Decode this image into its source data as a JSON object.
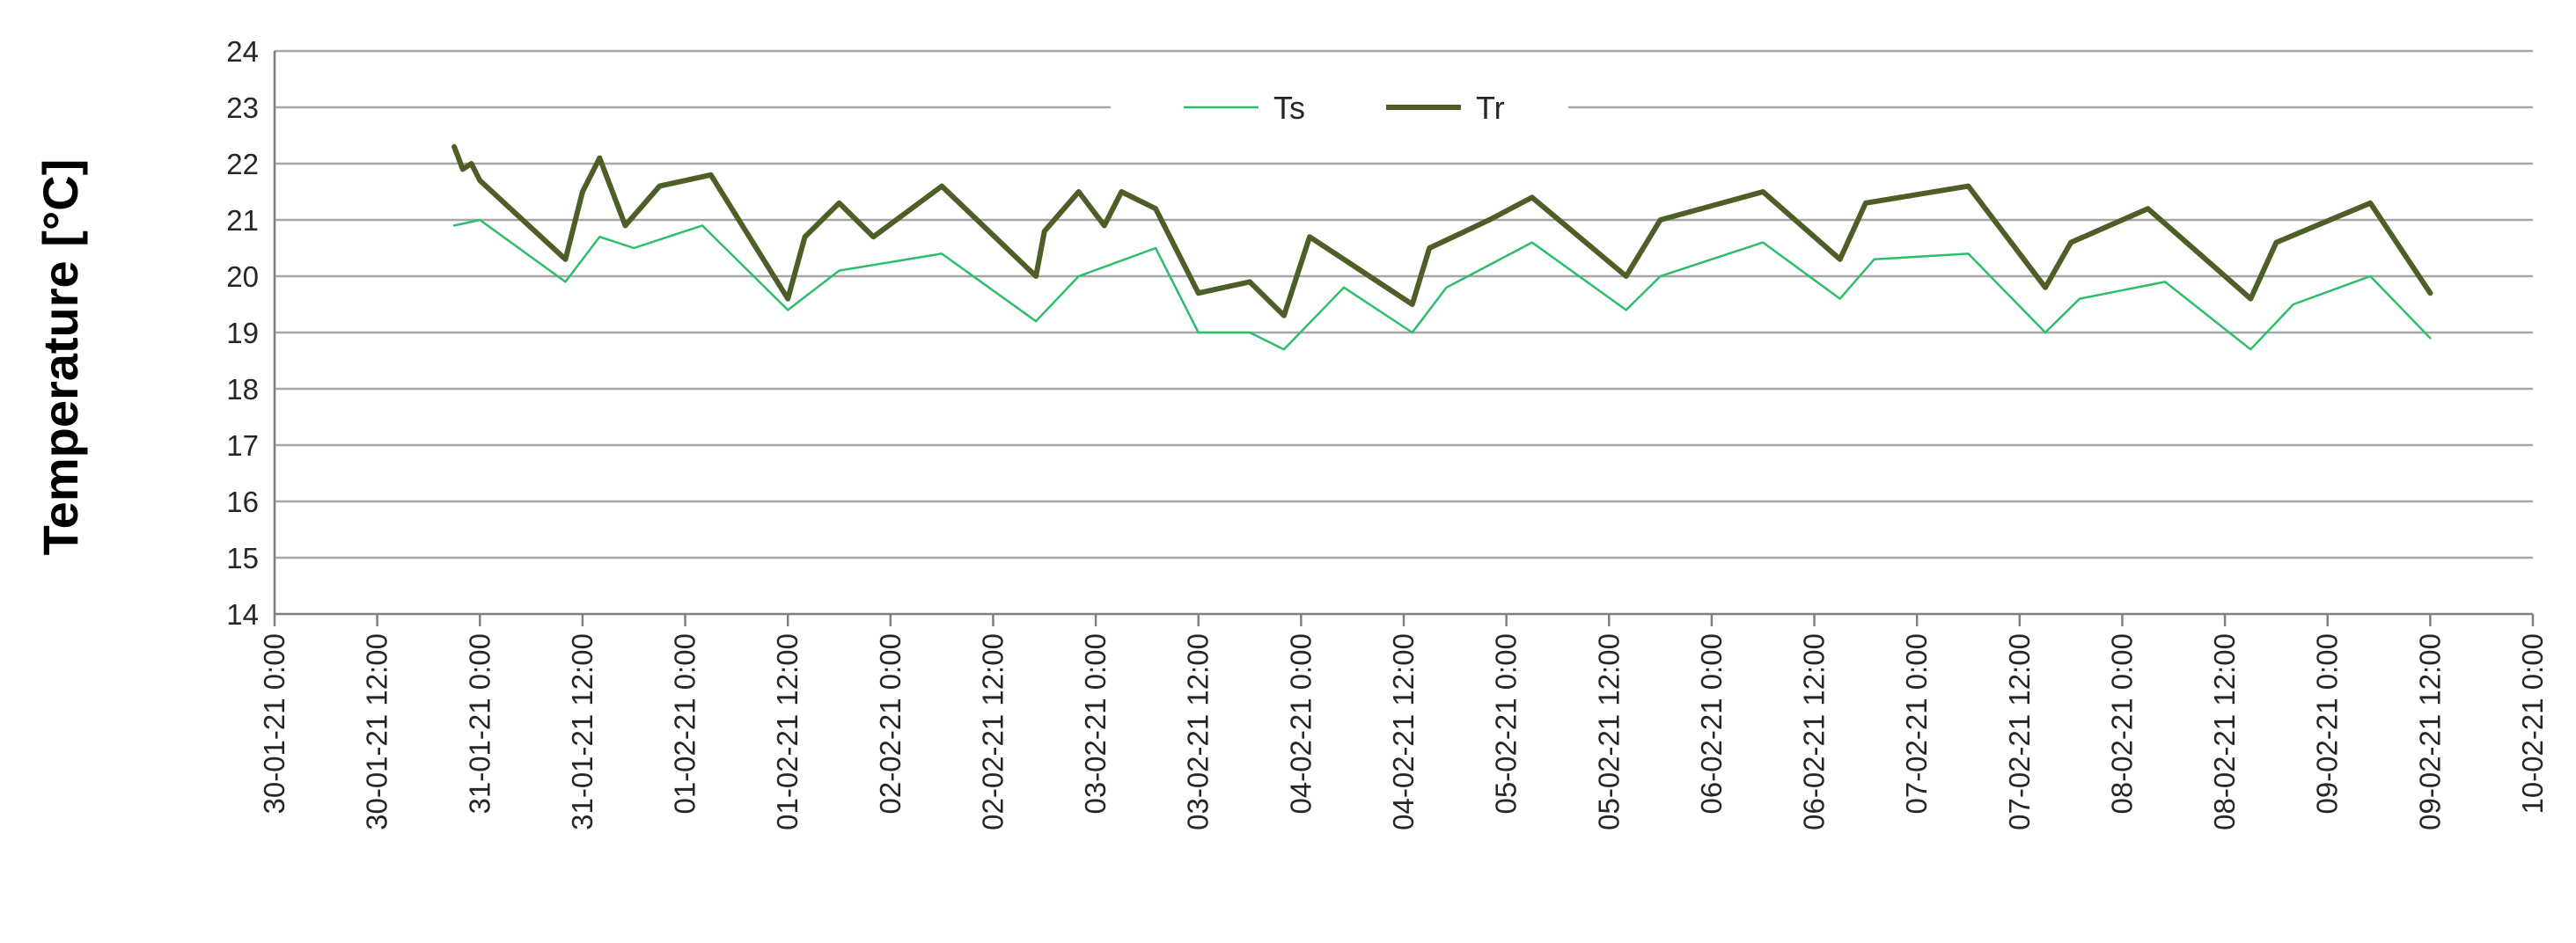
{
  "chart_data": {
    "type": "line",
    "title": "",
    "xlabel": "",
    "ylabel": "Temperature [°C]",
    "ylim": [
      14,
      24
    ],
    "y_ticks": [
      14,
      15,
      16,
      17,
      18,
      19,
      20,
      21,
      22,
      23,
      24
    ],
    "xlim": [
      "30-01-21 0:00",
      "10-02-21 0:00"
    ],
    "x_tick_labels": [
      "30-01-21 0:00",
      "30-01-21 12:00",
      "31-01-21 0:00",
      "31-01-21 12:00",
      "01-02-21 0:00",
      "01-02-21 12:00",
      "02-02-21 0:00",
      "02-02-21 12:00",
      "03-02-21 0:00",
      "03-02-21 12:00",
      "04-02-21 0:00",
      "04-02-21 12:00",
      "05-02-21 0:00",
      "05-02-21 12:00",
      "06-02-21 0:00",
      "06-02-21 12:00",
      "07-02-21 0:00",
      "07-02-21 12:00",
      "08-02-21 0:00",
      "08-02-21 12:00",
      "09-02-21 0:00",
      "09-02-21 12:00",
      "10-02-21 0:00"
    ],
    "grid": "horizontal",
    "legend_position": "top-center",
    "series": [
      {
        "name": "Ts",
        "color": "#2ebd6b",
        "x": [
          "30-01-21 21:00",
          "31-01-21 0:00",
          "31-01-21 10:00",
          "31-01-21 14:00",
          "31-01-21 18:00",
          "01-02-21 2:00",
          "01-02-21 12:00",
          "01-02-21 18:00",
          "02-02-21 6:00",
          "02-02-21 17:00",
          "02-02-21 22:00",
          "03-02-21 7:00",
          "03-02-21 12:00",
          "03-02-21 18:00",
          "03-02-21 22:00",
          "04-02-21 5:00",
          "04-02-21 13:00",
          "04-02-21 17:00",
          "05-02-21 3:00",
          "05-02-21 14:00",
          "05-02-21 18:00",
          "06-02-21 6:00",
          "06-02-21 15:00",
          "06-02-21 19:00",
          "07-02-21 6:00",
          "07-02-21 15:00",
          "07-02-21 19:00",
          "08-02-21 5:00",
          "08-02-21 15:00",
          "08-02-21 20:00",
          "09-02-21 5:00",
          "09-02-21 12:00"
        ],
        "y": [
          20.9,
          21.0,
          19.9,
          20.7,
          20.5,
          20.9,
          19.4,
          20.1,
          20.4,
          19.2,
          20.0,
          20.5,
          19.0,
          19.0,
          18.7,
          19.8,
          19.0,
          19.8,
          20.6,
          19.4,
          20.0,
          20.6,
          19.6,
          20.3,
          20.4,
          19.0,
          19.6,
          19.9,
          18.7,
          19.5,
          20.0,
          18.9
        ]
      },
      {
        "name": "Tr",
        "color": "#4d5e26",
        "x": [
          "30-01-21 21:00",
          "30-01-21 22:00",
          "30-01-21 23:00",
          "31-01-21 0:00",
          "31-01-21 10:00",
          "31-01-21 12:00",
          "31-01-21 14:00",
          "31-01-21 17:00",
          "31-01-21 21:00",
          "01-02-21 3:00",
          "01-02-21 12:00",
          "01-02-21 14:00",
          "01-02-21 18:00",
          "01-02-21 22:00",
          "02-02-21 6:00",
          "02-02-21 17:00",
          "02-02-21 18:00",
          "02-02-21 22:00",
          "03-02-21 1:00",
          "03-02-21 3:00",
          "03-02-21 7:00",
          "03-02-21 12:00",
          "03-02-21 18:00",
          "03-02-21 22:00",
          "04-02-21 1:00",
          "04-02-21 13:00",
          "04-02-21 15:00",
          "04-02-21 22:00",
          "05-02-21 3:00",
          "05-02-21 14:00",
          "05-02-21 18:00",
          "06-02-21 6:00",
          "06-02-21 15:00",
          "06-02-21 18:00",
          "07-02-21 6:00",
          "07-02-21 15:00",
          "07-02-21 18:00",
          "08-02-21 3:00",
          "08-02-21 15:00",
          "08-02-21 18:00",
          "09-02-21 5:00",
          "09-02-21 12:00"
        ],
        "y": [
          22.3,
          21.9,
          22.0,
          21.7,
          20.3,
          21.5,
          22.1,
          20.9,
          21.6,
          21.8,
          19.6,
          20.7,
          21.3,
          20.7,
          21.6,
          20.0,
          20.8,
          21.5,
          20.9,
          21.5,
          21.2,
          19.7,
          19.9,
          19.3,
          20.7,
          19.5,
          20.5,
          21.0,
          21.4,
          20.0,
          21.0,
          21.5,
          20.3,
          21.3,
          21.6,
          19.8,
          20.6,
          21.2,
          19.6,
          20.6,
          21.3,
          19.7
        ]
      }
    ]
  }
}
